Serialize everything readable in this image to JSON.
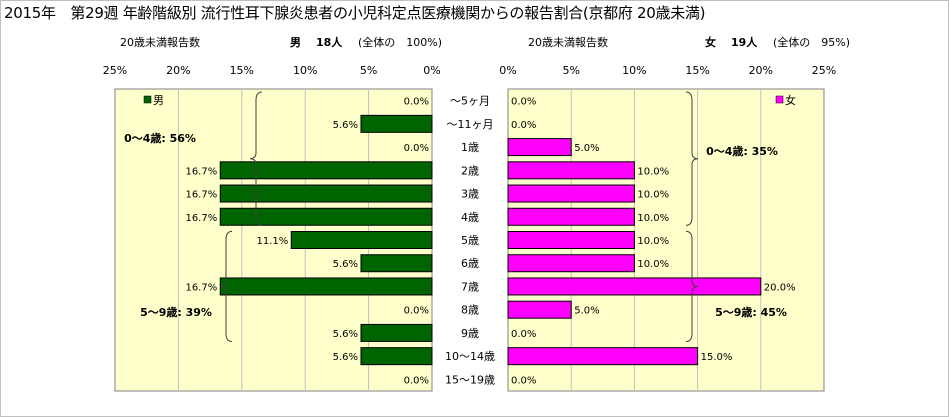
{
  "title": "2015年　第29週 年齢階級別 流行性耳下腺炎患者の小児科定点医療機関からの報告割合(京都府 20歳未満)",
  "left_header": {
    "label": "20歳未満報告数",
    "sex": "男",
    "count": "18人",
    "share": "(全体の　100%)"
  },
  "right_header": {
    "label": "20歳未満報告数",
    "sex": "女",
    "count": "19人",
    "share": "(全体の　95%)"
  },
  "colors": {
    "male": "#006400",
    "female": "#ff00ff",
    "plot_bg": "#ffffcc"
  },
  "chart_data": [
    {
      "type": "bar",
      "orientation": "horizontal",
      "direction": "right-to-left",
      "categories": [
        "〜5ヶ月",
        "〜11ヶ月",
        "1歳",
        "2歳",
        "3歳",
        "4歳",
        "5歳",
        "6歳",
        "7歳",
        "8歳",
        "9歳",
        "10〜14歳",
        "15〜19歳"
      ],
      "series": [
        {
          "name": "男",
          "values": [
            0.0,
            5.6,
            0.0,
            16.7,
            16.7,
            16.7,
            11.1,
            5.6,
            16.7,
            0.0,
            5.6,
            5.6,
            0.0
          ],
          "labels": [
            "0.0%",
            "5.6%",
            "0.0%",
            "16.7%",
            "16.7%",
            "16.7%",
            "11.1%",
            "5.6%",
            "16.7%",
            "0.0%",
            "5.6%",
            "5.6%",
            "0.0%"
          ]
        }
      ],
      "x_ticks": [
        "25%",
        "20%",
        "15%",
        "10%",
        "5%",
        "0%"
      ],
      "xlim": [
        0,
        25
      ],
      "legend": "top-left",
      "annotations": [
        "0〜4歳: 56%",
        "5〜9歳: 39%"
      ]
    },
    {
      "type": "bar",
      "orientation": "horizontal",
      "direction": "left-to-right",
      "categories": [
        "〜5ヶ月",
        "〜11ヶ月",
        "1歳",
        "2歳",
        "3歳",
        "4歳",
        "5歳",
        "6歳",
        "7歳",
        "8歳",
        "9歳",
        "10〜14歳",
        "15〜19歳"
      ],
      "series": [
        {
          "name": "女",
          "values": [
            0.0,
            0.0,
            5.0,
            10.0,
            10.0,
            10.0,
            10.0,
            10.0,
            20.0,
            5.0,
            0.0,
            15.0,
            0.0
          ],
          "labels": [
            "0.0%",
            "0.0%",
            "5.0%",
            "10.0%",
            "10.0%",
            "10.0%",
            "10.0%",
            "10.0%",
            "20.0%",
            "5.0%",
            "0.0%",
            "15.0%",
            "0.0%"
          ]
        }
      ],
      "x_ticks": [
        "0%",
        "5%",
        "10%",
        "15%",
        "20%",
        "25%"
      ],
      "xlim": [
        0,
        25
      ],
      "legend": "top-right",
      "annotations": [
        "0〜4歳: 35%",
        "5〜9歳: 45%"
      ]
    }
  ]
}
